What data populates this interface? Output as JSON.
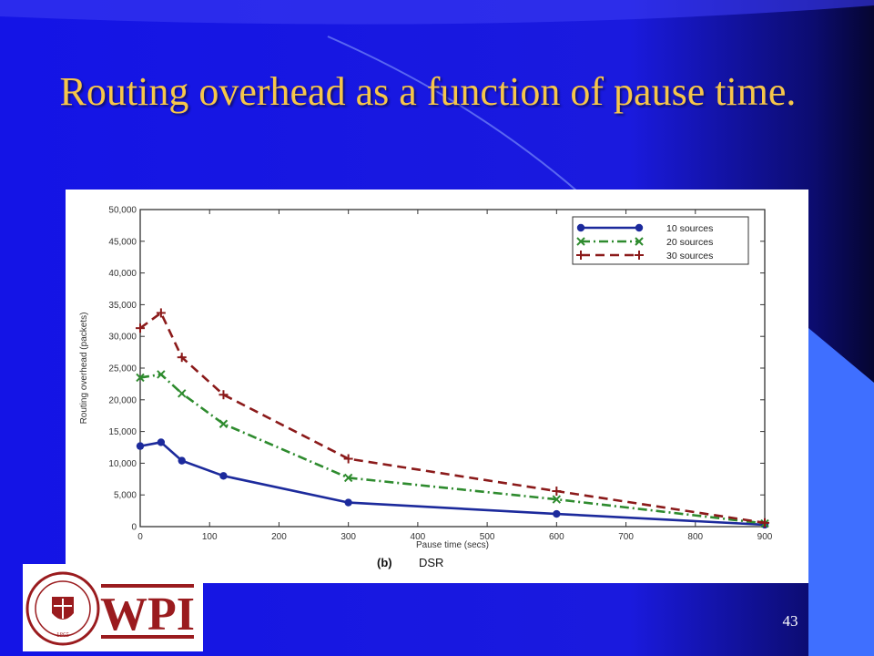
{
  "slide": {
    "title": "Routing overhead as a function of pause time.",
    "page_number": "43"
  },
  "logo": {
    "text": "WPI",
    "seal_text": "WORCESTER POLYTECHNIC INSTITUTE",
    "seal_year": "1865"
  },
  "colors": {
    "background": "#1e1ef0",
    "title": "#f6c64a",
    "logo_red": "#9a1b1e"
  },
  "chart_data": {
    "type": "line",
    "title": "",
    "caption_label": "(b)",
    "caption_text": "DSR",
    "xlabel": "Pause time (secs)",
    "ylabel": "Routing overhead (packets)",
    "xlim": [
      0,
      900
    ],
    "ylim": [
      0,
      50000
    ],
    "x_ticks": [
      "0",
      "100",
      "200",
      "300",
      "400",
      "500",
      "600",
      "700",
      "800",
      "900"
    ],
    "y_ticks": [
      "0",
      "5,000",
      "10,000",
      "15,000",
      "20,000",
      "25,000",
      "30,000",
      "35,000",
      "40,000",
      "45,000",
      "50,000"
    ],
    "grid": false,
    "legend_position": "top-right",
    "series": [
      {
        "name": "10 sources",
        "color": "#1c2a9c",
        "line_style": "solid",
        "marker": "dot",
        "x": [
          0,
          30,
          60,
          120,
          300,
          600,
          900
        ],
        "values": [
          12700,
          13300,
          10400,
          8000,
          3800,
          2000,
          300
        ]
      },
      {
        "name": "20 sources",
        "color": "#2e8b2e",
        "line_style": "dash-dot",
        "marker": "x",
        "x": [
          0,
          30,
          60,
          120,
          300,
          600,
          900
        ],
        "values": [
          23500,
          24000,
          21000,
          16200,
          7700,
          4300,
          500
        ]
      },
      {
        "name": "30 sources",
        "color": "#8b1a1a",
        "line_style": "dashed",
        "marker": "plus",
        "x": [
          0,
          30,
          60,
          120,
          300,
          600,
          900
        ],
        "values": [
          31300,
          33700,
          26700,
          20800,
          10700,
          5600,
          600
        ]
      }
    ]
  }
}
